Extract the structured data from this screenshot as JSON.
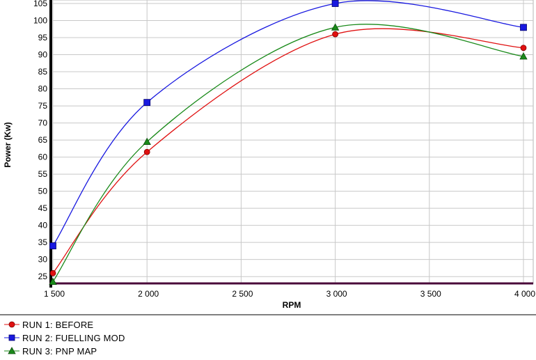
{
  "chart_data": {
    "type": "line",
    "xlabel": "RPM",
    "ylabel": "Power (Kw)",
    "xlim": [
      1500,
      4000
    ],
    "ylim": [
      23,
      105
    ],
    "x_ticks": [
      1500,
      2000,
      2500,
      3000,
      3500,
      4000
    ],
    "x_tick_labels": [
      "1 500",
      "2 000",
      "2 500",
      "3 000",
      "3 500",
      "4 000"
    ],
    "y_ticks": [
      25,
      30,
      35,
      40,
      45,
      50,
      55,
      60,
      65,
      70,
      75,
      80,
      85,
      90,
      95,
      100,
      105
    ],
    "y_tick_labels": [
      "25",
      "30",
      "35",
      "40",
      "45",
      "50",
      "55",
      "60",
      "65",
      "70",
      "75",
      "80",
      "85",
      "90",
      "95",
      "100",
      "105"
    ],
    "grid": true,
    "legend_position": "bottom-left",
    "series": [
      {
        "name": "RUN 1: BEFORE",
        "color": "#e01010",
        "marker": "circle",
        "x": [
          1500,
          2000,
          3000,
          4000
        ],
        "values": [
          26,
          61.5,
          96,
          92
        ]
      },
      {
        "name": "RUN 2: FUELLING MOD",
        "color": "#1818e0",
        "marker": "square",
        "x": [
          1500,
          2000,
          3000,
          4000
        ],
        "values": [
          34,
          76,
          105,
          98
        ]
      },
      {
        "name": "RUN 3: PNP MAP",
        "color": "#1a8a1a",
        "marker": "triangle",
        "x": [
          1500,
          2000,
          3000,
          4000
        ],
        "values": [
          23.5,
          64.5,
          98,
          89.5
        ]
      }
    ]
  }
}
